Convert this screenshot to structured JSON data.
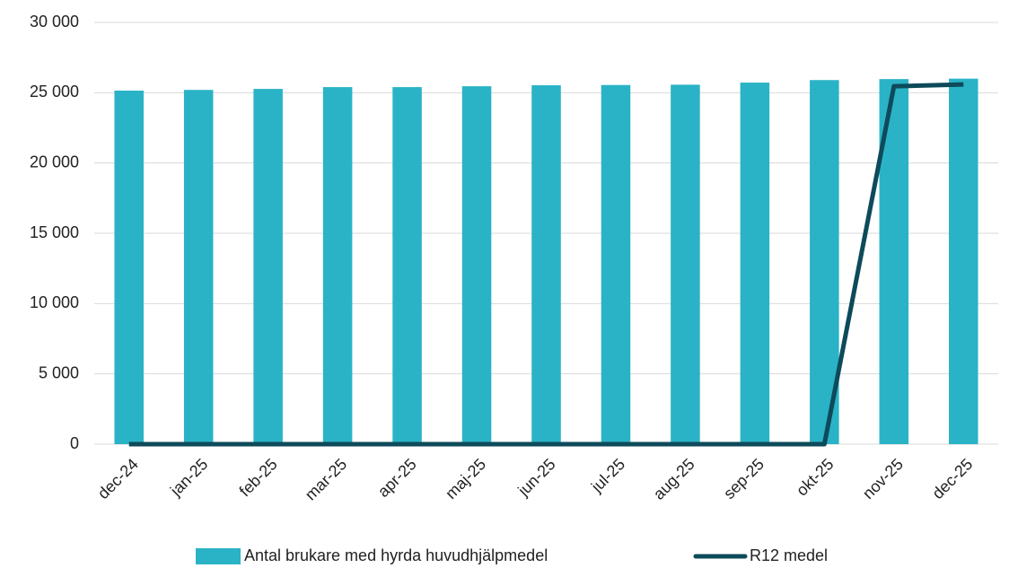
{
  "chart_data": {
    "type": "bar",
    "categories": [
      "dec-24",
      "jan-25",
      "feb-25",
      "mar-25",
      "apr-25",
      "maj-25",
      "jun-25",
      "jul-25",
      "aug-25",
      "sep-25",
      "okt-25",
      "nov-25",
      "dec-25"
    ],
    "series": [
      {
        "name": "Antal brukare med hyrda huvudhjälpmedel",
        "type": "bar",
        "color": "#2ab3c6",
        "values": [
          25150,
          25200,
          25270,
          25400,
          25400,
          25460,
          25530,
          25550,
          25570,
          25720,
          25900,
          25970,
          26000
        ]
      },
      {
        "name": "R12 medel",
        "type": "line",
        "color": "#0d4a5a",
        "values": [
          0,
          0,
          0,
          0,
          0,
          0,
          0,
          0,
          0,
          0,
          0,
          25460,
          25590
        ]
      }
    ],
    "ylim": [
      0,
      30000
    ],
    "yticks": [
      {
        "value": 0,
        "label": "0"
      },
      {
        "value": 5000,
        "label": "5 000"
      },
      {
        "value": 10000,
        "label": "10 000"
      },
      {
        "value": 15000,
        "label": "15 000"
      },
      {
        "value": 20000,
        "label": "20 000"
      },
      {
        "value": 25000,
        "label": "25 000"
      },
      {
        "value": 30000,
        "label": "30 000"
      }
    ],
    "grid": true,
    "legend": "bottom"
  }
}
